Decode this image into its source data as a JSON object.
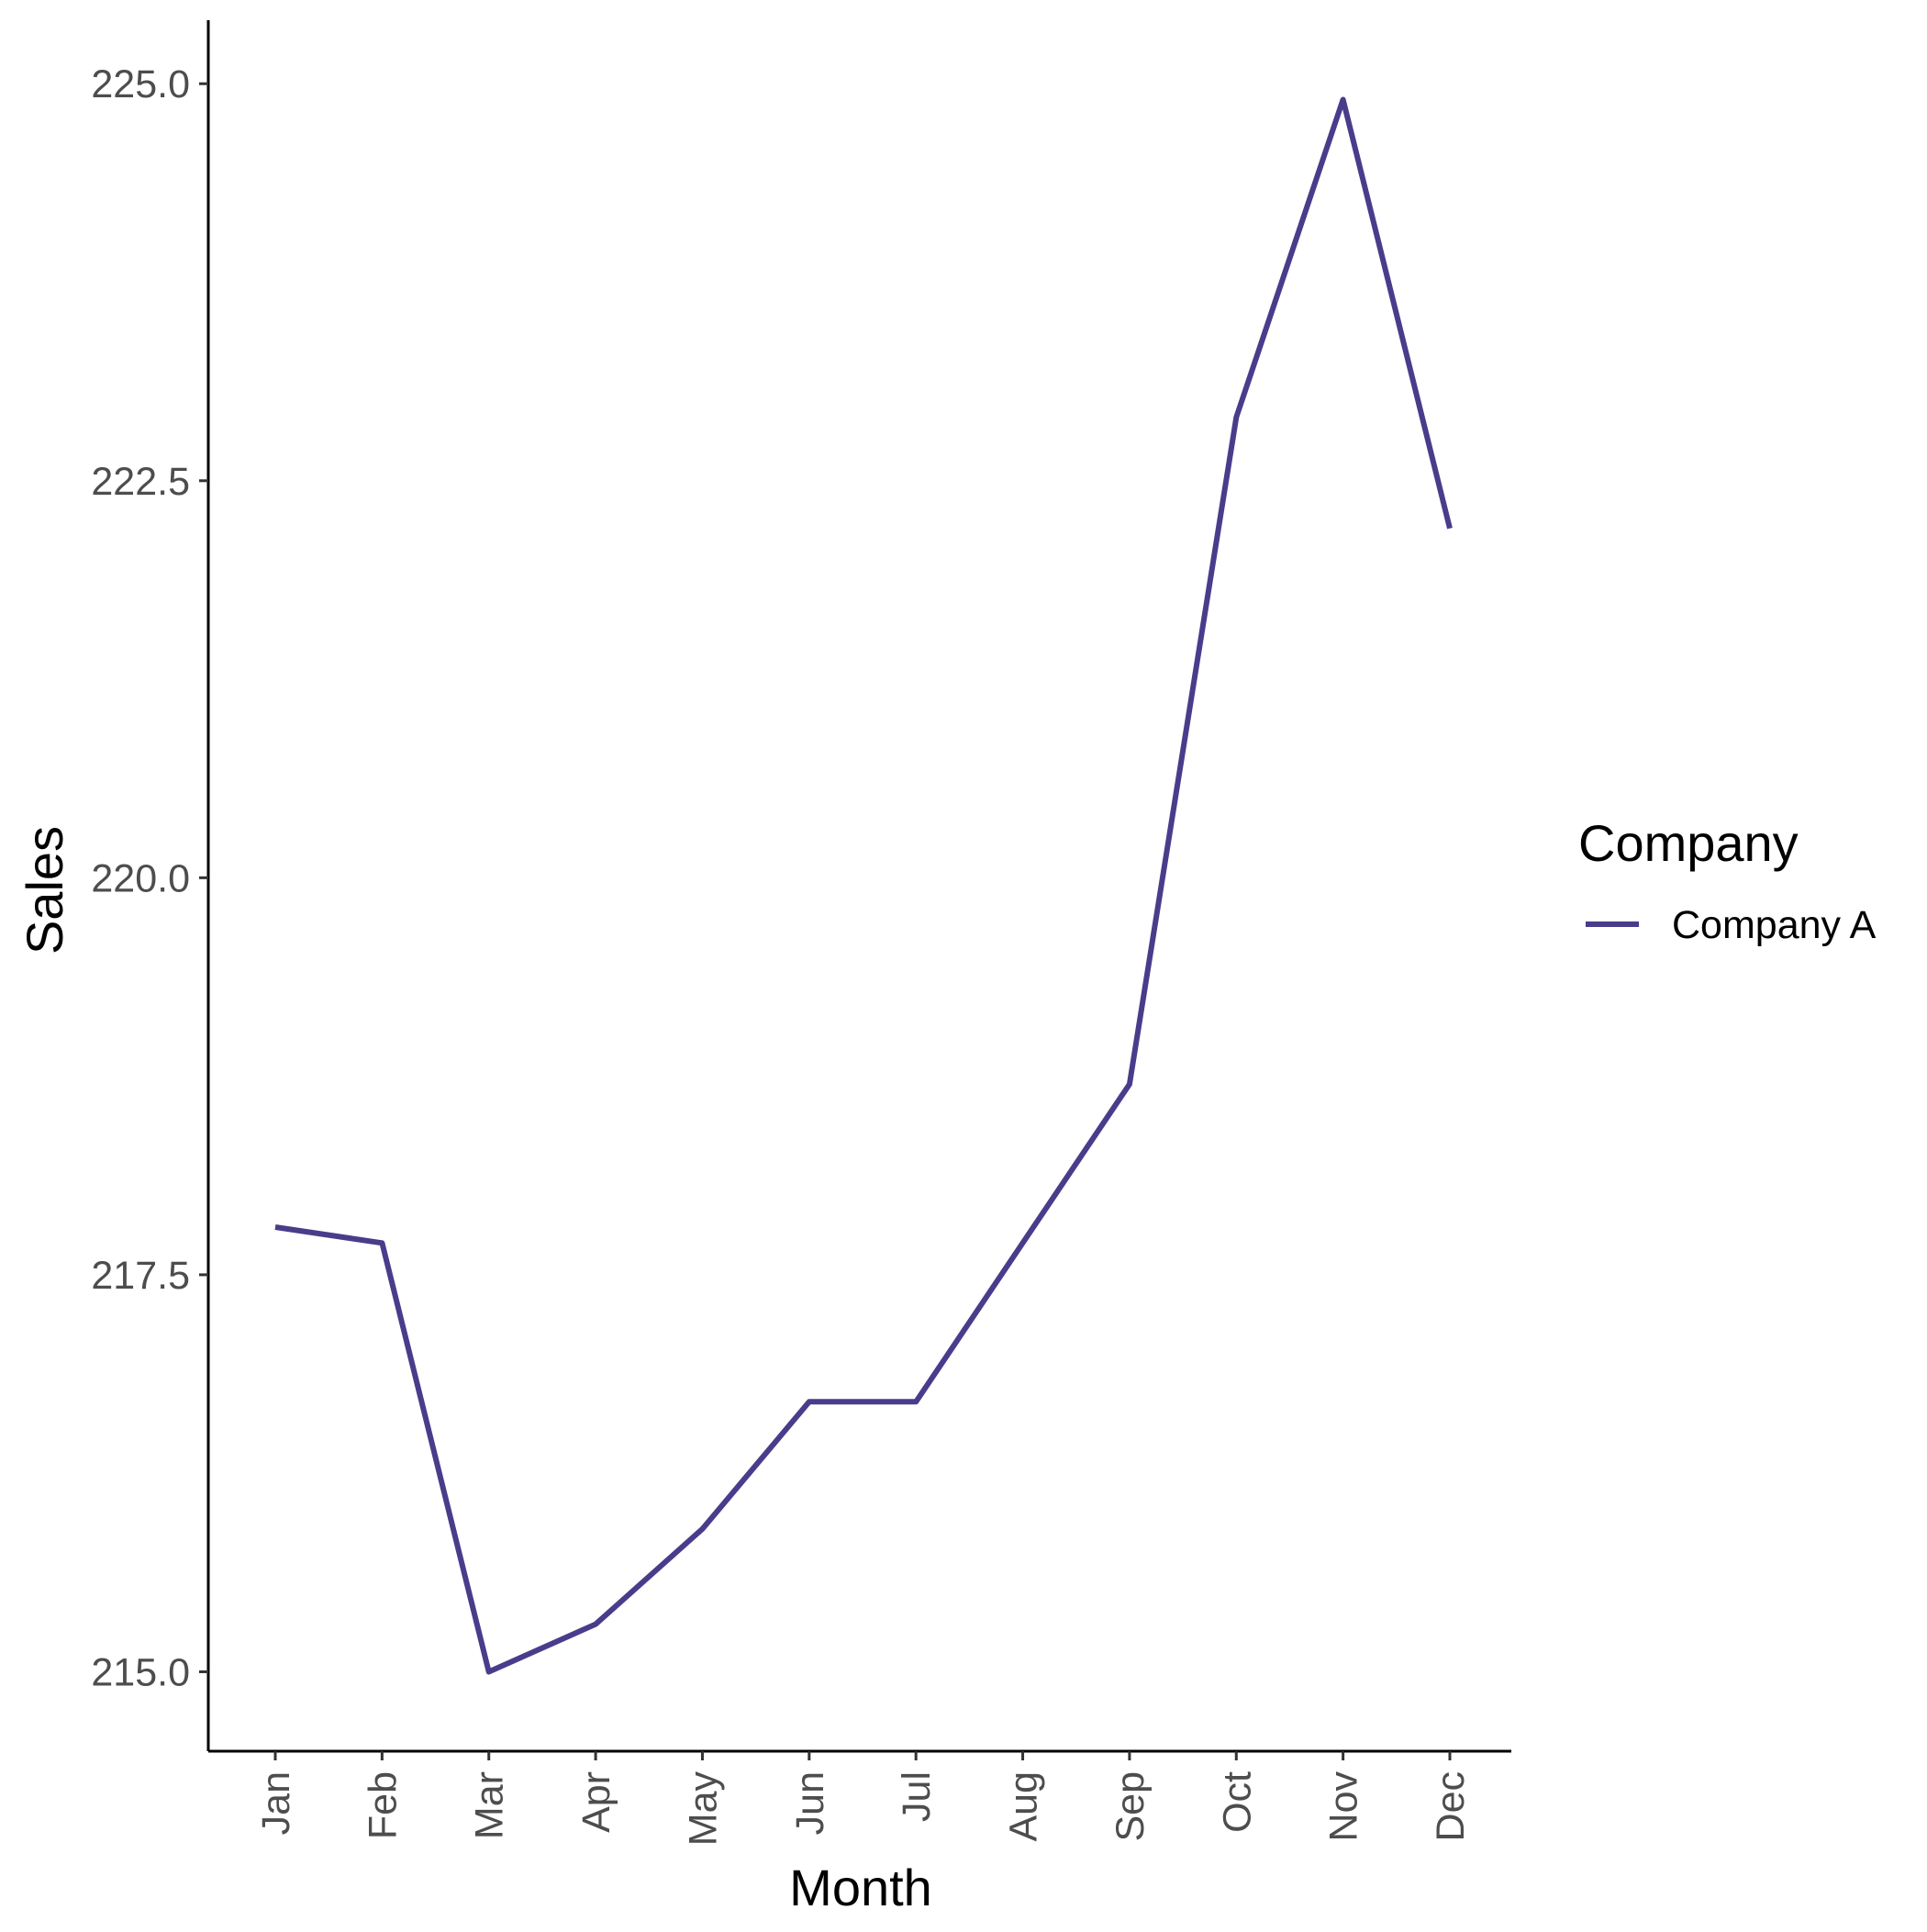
{
  "chart_data": {
    "type": "line",
    "title": "",
    "xlabel": "Month",
    "ylabel": "Sales",
    "categories": [
      "Jan",
      "Feb",
      "Mar",
      "Apr",
      "May",
      "Jun",
      "Jul",
      "Aug",
      "Sep",
      "Oct",
      "Nov",
      "Dec"
    ],
    "yticks": [
      215.0,
      217.5,
      220.0,
      222.5,
      225.0
    ],
    "ytick_labels": [
      "215.0",
      "217.5",
      "220.0",
      "222.5",
      "225.0"
    ],
    "ylim": [
      214.5,
      225.4
    ],
    "series": [
      {
        "name": "Company A",
        "color": "#483D8B",
        "values": [
          217.8,
          217.7,
          215.0,
          215.3,
          215.9,
          216.7,
          216.7,
          217.7,
          218.7,
          222.9,
          224.9,
          222.2
        ]
      }
    ],
    "grid": false,
    "legend": {
      "title": "Company",
      "position": "right"
    }
  }
}
